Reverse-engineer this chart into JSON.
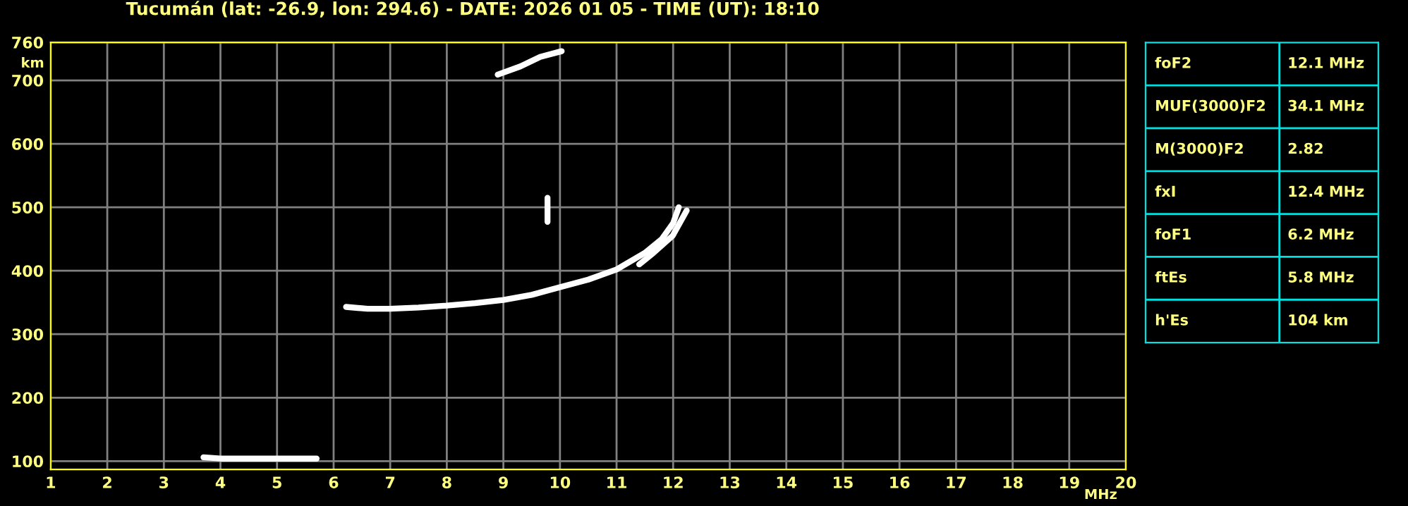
{
  "chart_data": [
    {
      "type": "line",
      "title": "Tucumán (lat: -26.9, lon: 294.6) - DATE: 2026 01 05 - TIME (UT): 18:10",
      "xlabel": "MHz",
      "ylabel": "km",
      "series": [
        {
          "color": "#ffffff",
          "x": [
            6.22,
            6.6,
            7.0,
            7.5,
            8.0,
            8.5,
            9.0,
            9.5,
            10.0,
            10.5,
            11.0,
            11.5,
            11.8,
            12.0,
            12.1
          ],
          "values": [
            343,
            340,
            340,
            342,
            345,
            349,
            354,
            362,
            374,
            386,
            402,
            428,
            450,
            475,
            500
          ]
        },
        {
          "color": "#ffffff",
          "x": [
            11.4,
            11.65,
            11.99,
            12.24
          ],
          "values": [
            410,
            428,
            455,
            495
          ]
        },
        {
          "color": "#ffffff",
          "x": [
            3.7,
            4.0,
            4.5,
            5.0,
            5.5,
            5.7
          ],
          "values": [
            106,
            104,
            104,
            104,
            104,
            104
          ]
        },
        {
          "color": "#ffffff",
          "x": [
            8.9,
            9.3,
            9.65,
            10.03
          ],
          "values": [
            709,
            722,
            737,
            746
          ]
        },
        {
          "color": "#ffffff",
          "x": [
            9.78,
            9.78
          ],
          "values": [
            477,
            515
          ]
        }
      ],
      "xlim": [
        1,
        20
      ],
      "xticks": [
        1,
        2,
        3,
        4,
        5,
        6,
        7,
        8,
        9,
        10,
        11,
        12,
        13,
        14,
        15,
        16,
        17,
        18,
        19,
        20
      ],
      "ylim": [
        87,
        760
      ],
      "yticks": [
        100,
        200,
        300,
        400,
        500,
        600,
        700,
        760
      ],
      "grid": true,
      "marker": "none",
      "line_style": "solid"
    },
    {
      "type": "other",
      "annotations": [
        "foF2",
        "12.1 MHz",
        "MUF(3000)F2",
        "34.1 MHz",
        "M(3000)F2",
        "2.82",
        "fxI",
        "12.4 MHz",
        "foF1",
        "6.2 MHz",
        "ftEs",
        "5.8 MHz",
        "h'Es",
        "104 km"
      ]
    }
  ]
}
